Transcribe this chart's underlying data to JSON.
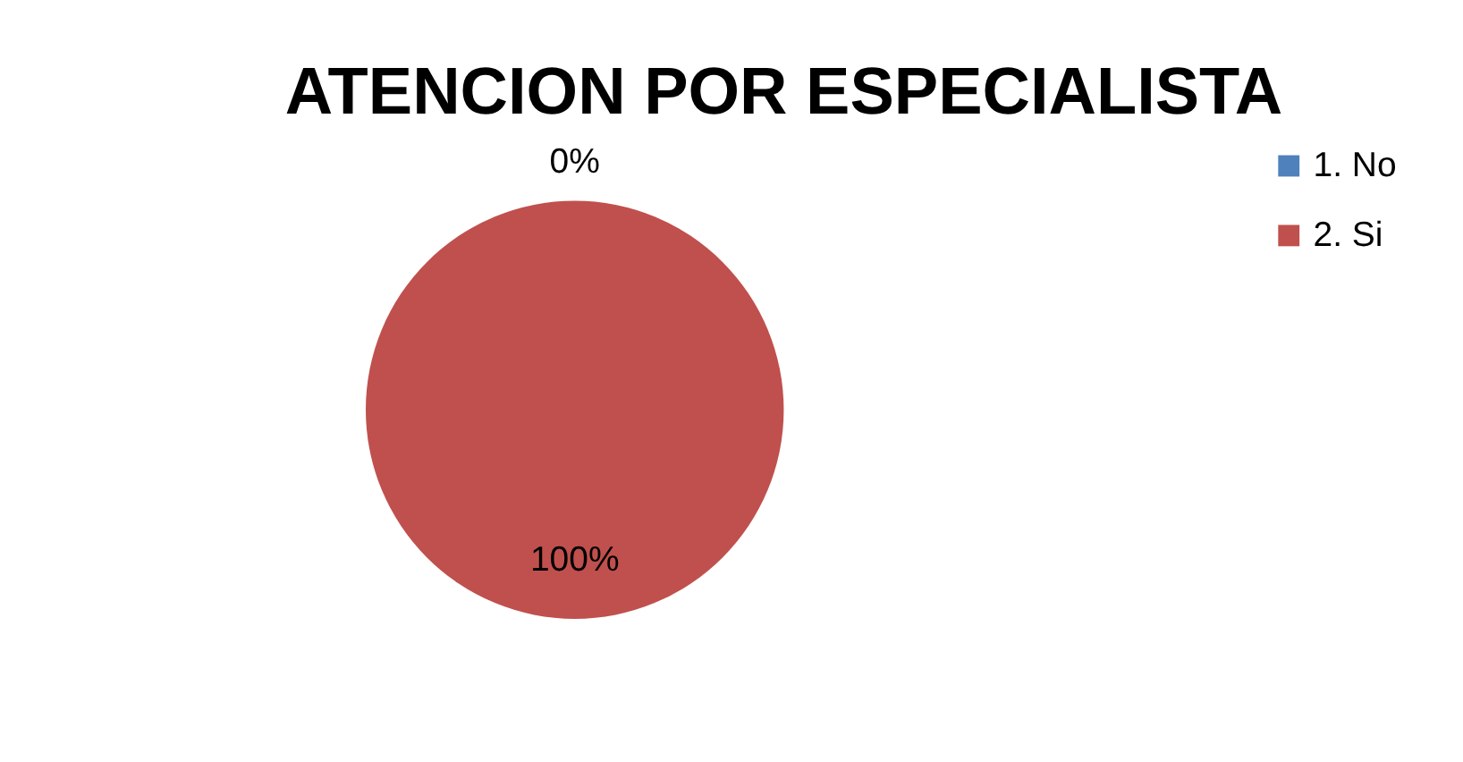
{
  "chart_data": {
    "type": "pie",
    "title": "ATENCION POR ESPECIALISTA",
    "categories": [
      "1.      No",
      "2.      Si"
    ],
    "values": [
      0,
      100
    ],
    "colors": [
      "#4f81bd",
      "#c0504d"
    ],
    "value_labels": [
      "0%",
      "100%"
    ],
    "legend": "right"
  }
}
